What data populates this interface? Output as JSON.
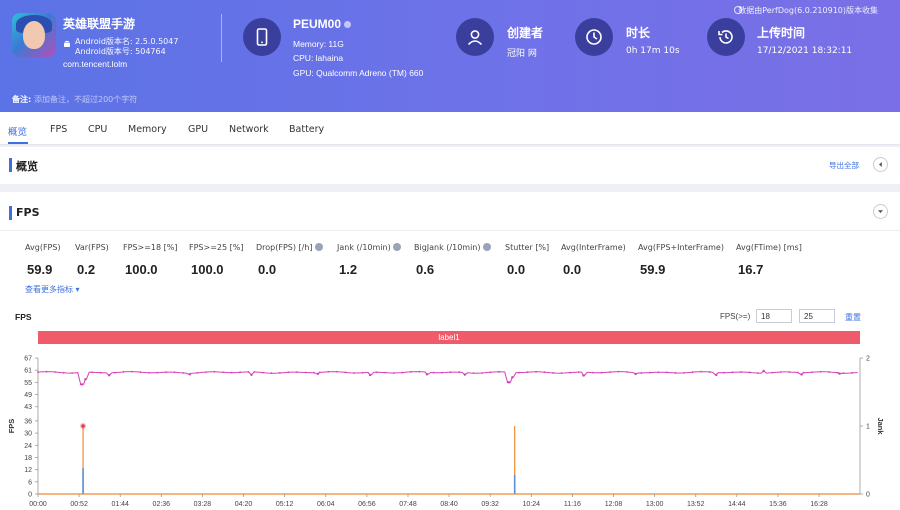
{
  "app": {
    "name": "英雄联盟手游",
    "version_name": "Android版本名: 2.5.0.5047",
    "version_code": "Android版本号: 504764",
    "package": "com.tencent.lolm"
  },
  "device": {
    "name": "PEUM00",
    "memory": "Memory: 11G",
    "cpu": "CPU: lahaina",
    "gpu": "GPU: Qualcomm Adreno (TM) 660"
  },
  "creator": {
    "title": "创建者",
    "value": "冠阳 网"
  },
  "duration": {
    "title": "时长",
    "value": "0h 17m 10s"
  },
  "upload": {
    "title": "上传时间",
    "value": "17/12/2021 18:32:11"
  },
  "source_text": "数据由PerfDog(6.0.210910)版本收集",
  "note": {
    "label": "备注:",
    "placeholder": "添加备注，不超过200个字符"
  },
  "tabs": [
    "概览",
    "FPS",
    "CPU",
    "Memory",
    "GPU",
    "Network",
    "Battery"
  ],
  "overview": {
    "title": "概览",
    "export": "导出全部"
  },
  "fps_panel": {
    "title": "FPS",
    "metrics": [
      {
        "label": "Avg(FPS)",
        "value": "59.9",
        "help": false
      },
      {
        "label": "Var(FPS)",
        "value": "0.2",
        "help": false
      },
      {
        "label": "FPS>=18 [%]",
        "value": "100.0",
        "help": false
      },
      {
        "label": "FPS>=25 [%]",
        "value": "100.0",
        "help": false
      },
      {
        "label": "Drop(FPS) [/h]",
        "value": "0.0",
        "help": true
      },
      {
        "label": "Jank (/10min)",
        "value": "1.2",
        "help": true
      },
      {
        "label": "BigJank (/10min)",
        "value": "0.6",
        "help": true
      },
      {
        "label": "Stutter [%]",
        "value": "0.0",
        "help": false
      },
      {
        "label": "Avg(InterFrame)",
        "value": "0.0",
        "help": false
      },
      {
        "label": "Avg(FPS+InterFrame)",
        "value": "59.9",
        "help": false
      },
      {
        "label": "Avg(FTime) [ms]",
        "value": "16.7",
        "help": false
      }
    ],
    "more_link": "查看更多指标",
    "chart_title": "FPS",
    "threshold_label": "FPS(>=)",
    "threshold_1": "18",
    "threshold_2": "25",
    "reset": "重置",
    "label_band": "label1"
  },
  "chart_data": {
    "type": "line",
    "title": "",
    "ylabel": "FPS",
    "y2label": "Jank",
    "ylim": [
      0,
      67
    ],
    "y2lim": [
      0,
      2
    ],
    "yticks": [
      0,
      6,
      12,
      18,
      24,
      30,
      36,
      43,
      49,
      55,
      61,
      67
    ],
    "y2ticks": [
      0,
      1,
      2
    ],
    "x_ticks": [
      "00:00",
      "00:52",
      "01:44",
      "02:36",
      "03:28",
      "04:20",
      "05:12",
      "06:04",
      "06:56",
      "07:48",
      "08:40",
      "09:32",
      "10:24",
      "11:16",
      "12:08",
      "13:00",
      "13:52",
      "14:44",
      "15:36",
      "16:28"
    ],
    "series": [
      {
        "name": "FPS",
        "color": "#d63fb5",
        "baseline": 59.9,
        "dips": [
          [
            0.93,
            54
          ],
          [
            1.0,
            56.5
          ],
          [
            9.93,
            55
          ],
          [
            10.0,
            57.5
          ]
        ],
        "minor": [
          [
            1.5,
            58.5
          ],
          [
            3.2,
            59
          ],
          [
            4.5,
            58.7
          ],
          [
            5.9,
            59.2
          ],
          [
            7.0,
            58.6
          ],
          [
            8.2,
            59.0
          ],
          [
            9.0,
            58.8
          ],
          [
            11.5,
            58.4
          ],
          [
            12.6,
            59.1
          ],
          [
            14.3,
            58.7
          ],
          [
            15.3,
            60.6
          ],
          [
            16.1,
            58.9
          ],
          [
            16.9,
            59.3
          ]
        ]
      },
      {
        "name": "Jank",
        "color": "#f08b3a",
        "points": [
          [
            0.95,
            1
          ],
          [
            10.05,
            1
          ]
        ]
      },
      {
        "name": "BigJank",
        "color": "#5b8fd6",
        "points": [
          [
            0.95,
            0.38
          ],
          [
            10.05,
            0.28
          ]
        ]
      }
    ],
    "grid": false,
    "legend": "none"
  }
}
